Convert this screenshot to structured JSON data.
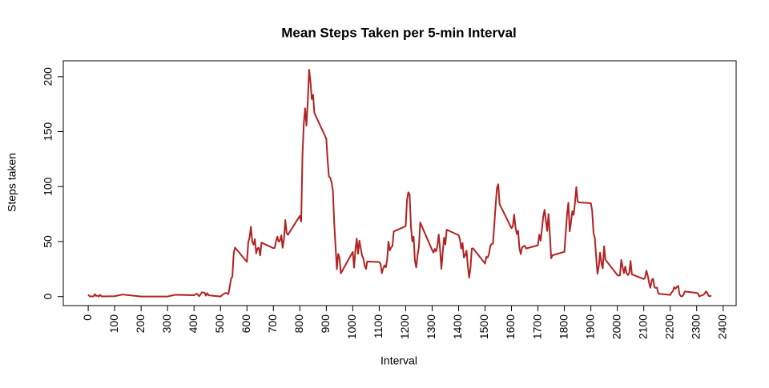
{
  "chart_data": {
    "type": "line",
    "title": "Mean Steps Taken per 5-min Interval",
    "x_label": "Interval",
    "y_label": "Steps taken",
    "color": "#b22222",
    "xlim": [
      -94.2,
      2449.2
    ],
    "ylim": [
      -8.25,
      214.42
    ],
    "xticks": [
      0,
      100,
      200,
      300,
      400,
      500,
      600,
      700,
      800,
      900,
      1000,
      1100,
      1200,
      1300,
      1400,
      1500,
      1600,
      1700,
      1800,
      1900,
      2000,
      2100,
      2200,
      2300,
      2400
    ],
    "yticks": [
      0,
      50,
      100,
      150,
      200
    ],
    "x": [
      0,
      5,
      10,
      15,
      20,
      25,
      30,
      35,
      40,
      45,
      50,
      55,
      100,
      130,
      200,
      300,
      330,
      400,
      410,
      420,
      430,
      440,
      445,
      450,
      455,
      500,
      510,
      520,
      530,
      540,
      545,
      550,
      555,
      600,
      605,
      610,
      615,
      620,
      625,
      630,
      635,
      640,
      645,
      650,
      655,
      700,
      705,
      710,
      715,
      720,
      725,
      730,
      735,
      740,
      745,
      750,
      755,
      800,
      805,
      810,
      815,
      820,
      825,
      830,
      835,
      840,
      845,
      850,
      855,
      900,
      905,
      910,
      915,
      920,
      925,
      930,
      935,
      940,
      945,
      950,
      955,
      1000,
      1005,
      1010,
      1015,
      1020,
      1025,
      1030,
      1035,
      1040,
      1045,
      1050,
      1055,
      1100,
      1105,
      1110,
      1115,
      1120,
      1125,
      1130,
      1135,
      1140,
      1145,
      1150,
      1155,
      1200,
      1205,
      1210,
      1215,
      1220,
      1225,
      1230,
      1235,
      1240,
      1245,
      1250,
      1255,
      1300,
      1305,
      1310,
      1315,
      1320,
      1325,
      1330,
      1335,
      1340,
      1345,
      1350,
      1355,
      1400,
      1405,
      1410,
      1415,
      1420,
      1425,
      1430,
      1435,
      1440,
      1445,
      1450,
      1455,
      1500,
      1505,
      1510,
      1515,
      1520,
      1525,
      1530,
      1535,
      1540,
      1545,
      1550,
      1555,
      1600,
      1605,
      1610,
      1615,
      1620,
      1625,
      1630,
      1635,
      1640,
      1645,
      1650,
      1655,
      1700,
      1705,
      1710,
      1715,
      1720,
      1725,
      1730,
      1735,
      1740,
      1745,
      1750,
      1755,
      1800,
      1805,
      1810,
      1815,
      1820,
      1825,
      1830,
      1835,
      1840,
      1845,
      1850,
      1855,
      1900,
      1905,
      1910,
      1915,
      1920,
      1925,
      1930,
      1935,
      1940,
      1945,
      1950,
      1955,
      2000,
      2005,
      2010,
      2015,
      2020,
      2025,
      2030,
      2035,
      2040,
      2045,
      2050,
      2055,
      2100,
      2105,
      2110,
      2115,
      2120,
      2125,
      2130,
      2135,
      2140,
      2145,
      2150,
      2155,
      2200,
      2205,
      2210,
      2215,
      2220,
      2225,
      2230,
      2235,
      2240,
      2245,
      2250,
      2255,
      2300,
      2305,
      2310,
      2315,
      2320,
      2325,
      2330,
      2335,
      2340,
      2345,
      2350,
      2355
    ],
    "values": [
      1.7,
      0.3,
      0.1,
      0.2,
      0.1,
      2.1,
      0.5,
      0.9,
      0,
      1.5,
      0.3,
      0.1,
      0.3,
      1.8,
      0,
      0,
      1.6,
      1.2,
      2.6,
      0.3,
      3.9,
      3.5,
      0.8,
      3.1,
      1.1,
      0,
      2,
      3.3,
      2.2,
      16,
      18.3,
      39.5,
      44.5,
      31.5,
      49.3,
      53.8,
      63.5,
      50,
      47.1,
      52.2,
      39.3,
      44,
      44.2,
      37.4,
      49,
      44,
      44.2,
      50.5,
      54.5,
      49.9,
      51,
      55.7,
      44.3,
      52.3,
      69.5,
      57.8,
      56.2,
      73.4,
      68.2,
      129.4,
      157.5,
      171.2,
      155.4,
      177.3,
      206.2,
      195.9,
      179.6,
      183.4,
      167,
      143.5,
      124,
      109.1,
      108.1,
      103.7,
      96,
      66.2,
      45.2,
      24.8,
      38.8,
      35,
      21.1,
      40.6,
      26.3,
      42.4,
      52.7,
      38.9,
      50.8,
      44.3,
      37.4,
      34.7,
      28.3,
      25.1,
      31.9,
      31.4,
      29.7,
      21.3,
      25.5,
      28.4,
      26.5,
      33.4,
      50,
      42,
      44.6,
      46,
      59.2,
      63.9,
      87.7,
      94.8,
      92.8,
      63.4,
      50.2,
      54.5,
      32.4,
      26.5,
      37.7,
      45,
      67.3,
      42.3,
      39.9,
      43.3,
      41,
      46.2,
      56.4,
      42.8,
      25.1,
      40,
      53.5,
      47.3,
      60.8,
      55.8,
      52,
      43.6,
      48.7,
      35.5,
      37.5,
      41.8,
      27.5,
      17.1,
      26.1,
      43.6,
      43.8,
      30,
      36.1,
      35.5,
      38.8,
      46,
      47.8,
      48.1,
      65.3,
      82.9,
      98.7,
      102.1,
      84,
      62.1,
      64.1,
      74.5,
      63.2,
      56.9,
      59.8,
      43.9,
      38.6,
      44.7,
      45.5,
      46.2,
      43.7,
      46.6,
      56.3,
      50.7,
      61.2,
      72.7,
      78.9,
      68.9,
      59.7,
      75.1,
      56.5,
      34.8,
      37.5,
      40.7,
      58,
      74.7,
      85.3,
      59.3,
      67.8,
      77.7,
      74.2,
      85.3,
      99.5,
      86.6,
      85.6,
      84.9,
      77.8,
      58,
      53.4,
      36.3,
      20.7,
      27.4,
      40,
      30.2,
      25.5,
      45.7,
      33.5,
      19.6,
      19,
      19.3,
      33.3,
      26.8,
      21.2,
      27.3,
      21.3,
      19.5,
      21.3,
      32.3,
      20.2,
      15.9,
      17.2,
      23.5,
      19.2,
      12.5,
      8,
      14.7,
      16.3,
      8.7,
      7.8,
      8.1,
      2.6,
      1.5,
      3.7,
      4.8,
      8.5,
      7.1,
      8.7,
      9.8,
      2.2,
      0.3,
      0.1,
      1.6,
      4.6,
      3.3,
      2.8,
      0,
      0.8,
      1,
      1.6,
      2.6,
      4.7,
      3.3,
      0.6,
      0.2,
      1.1
    ]
  }
}
